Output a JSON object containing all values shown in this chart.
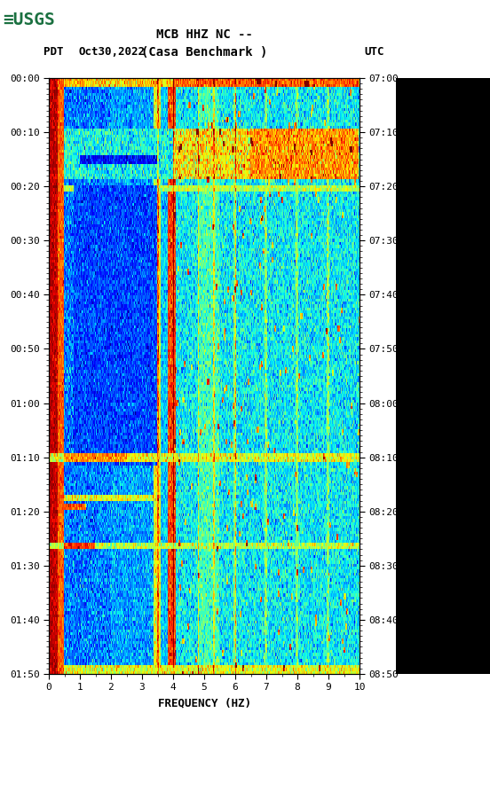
{
  "title_line1": "MCB HHZ NC --",
  "title_line2": "(Casa Benchmark )",
  "date_label": "Oct30,2022",
  "left_time_label": "PDT",
  "right_time_label": "UTC",
  "left_yticks": [
    "00:00",
    "00:10",
    "00:20",
    "00:30",
    "00:40",
    "00:50",
    "01:00",
    "01:10",
    "01:20",
    "01:30",
    "01:40",
    "01:50"
  ],
  "right_yticks": [
    "07:00",
    "07:10",
    "07:20",
    "07:30",
    "07:40",
    "07:50",
    "08:00",
    "08:10",
    "08:20",
    "08:30",
    "08:40",
    "08:50"
  ],
  "xticks": [
    0,
    1,
    2,
    3,
    4,
    5,
    6,
    7,
    8,
    9,
    10
  ],
  "xlabel": "FREQUENCY (HZ)",
  "freq_min": 0,
  "freq_max": 10,
  "n_time": 200,
  "n_freq": 500,
  "background_color": "#ffffff",
  "panel_bg": "#000000",
  "usgs_green": "#1a7040",
  "font_color": "#000000",
  "colormap": "jet",
  "seed": 12345
}
